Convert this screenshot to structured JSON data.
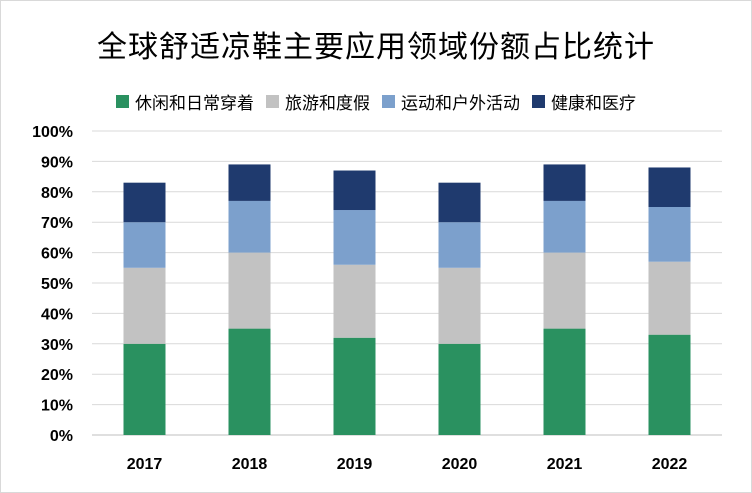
{
  "chart_data": {
    "type": "bar",
    "stacked": true,
    "title": "全球舒适凉鞋主要应用领域份额占比统计",
    "xlabel": "",
    "ylabel": "",
    "categories": [
      "2017",
      "2018",
      "2019",
      "2020",
      "2021",
      "2022"
    ],
    "ylim": [
      0,
      100
    ],
    "yticks": [
      "0%",
      "10%",
      "20%",
      "30%",
      "40%",
      "50%",
      "60%",
      "70%",
      "80%",
      "90%",
      "100%"
    ],
    "grid": true,
    "legend_position": "top",
    "series": [
      {
        "name": "休闲和日常穿着",
        "color": "#2a9160",
        "values": [
          30,
          35,
          32,
          30,
          35,
          33
        ]
      },
      {
        "name": "旅游和度假",
        "color": "#c2c2c2",
        "values": [
          25,
          25,
          24,
          25,
          25,
          24
        ]
      },
      {
        "name": "运动和户外活动",
        "color": "#7ca0cc",
        "values": [
          15,
          17,
          18,
          15,
          17,
          18
        ]
      },
      {
        "name": "健康和医疗",
        "color": "#1f3a6e",
        "values": [
          13,
          12,
          13,
          13,
          12,
          13
        ]
      }
    ]
  }
}
